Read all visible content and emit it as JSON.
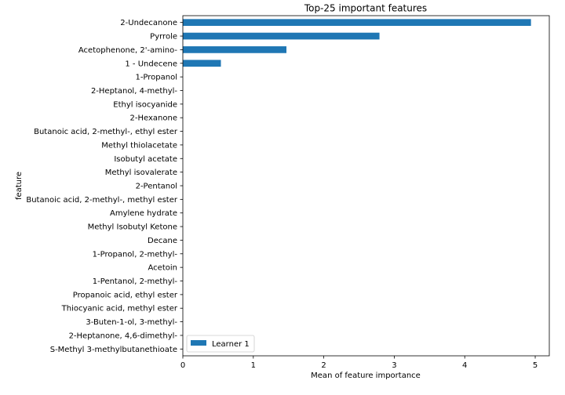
{
  "chart_data": {
    "type": "bar",
    "orientation": "horizontal",
    "title": "Top-25 important features",
    "xlabel": "Mean of feature importance",
    "ylabel": "feature",
    "xlim": [
      0,
      5.2
    ],
    "xticks": [
      "0",
      "1",
      "2",
      "3",
      "4",
      "5"
    ],
    "grid": false,
    "legend_position": "lower-left",
    "categories": [
      "2-Undecanone",
      "Pyrrole",
      "Acetophenone, 2'-amino-",
      "1 - Undecene",
      "1-Propanol",
      "2-Heptanol, 4-methyl-",
      "Ethyl isocyanide",
      "2-Hexanone",
      "Butanoic acid, 2-methyl-, ethyl ester",
      "Methyl thiolacetate",
      "Isobutyl acetate",
      "Methyl isovalerate",
      "2-Pentanol",
      "Butanoic acid, 2-methyl-, methyl ester",
      "Amylene hydrate",
      "Methyl Isobutyl Ketone",
      "Decane",
      "1-Propanol, 2-methyl-",
      "Acetoin",
      "1-Pentanol, 2-methyl-",
      "Propanoic acid, ethyl ester",
      "Thiocyanic acid, methyl ester",
      "3-Buten-1-ol, 3-methyl-",
      "2-Heptanone, 4,6-dimethyl-",
      "S-Methyl 3-methylbutanethioate"
    ],
    "series": [
      {
        "name": "Learner 1",
        "color": "#1f77b4",
        "values": [
          4.94,
          2.79,
          1.47,
          0.54,
          0,
          0,
          0,
          0,
          0,
          0,
          0,
          0,
          0,
          0,
          0,
          0,
          0,
          0,
          0,
          0,
          0,
          0,
          0,
          0,
          0
        ]
      }
    ]
  }
}
